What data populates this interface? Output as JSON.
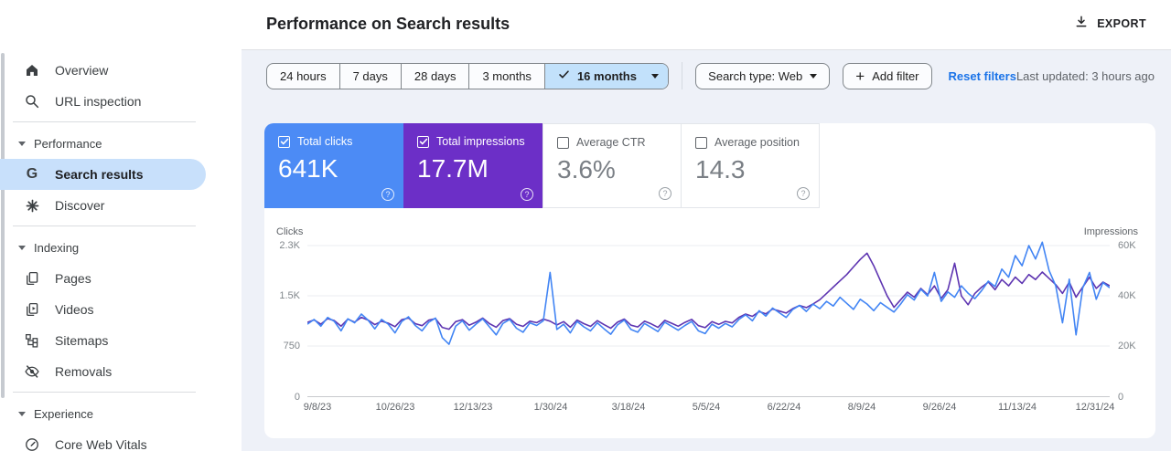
{
  "header": {
    "title": "Performance on Search results",
    "export_label": "EXPORT"
  },
  "filters": {
    "date_ranges": [
      {
        "label": "24 hours",
        "selected": false
      },
      {
        "label": "7 days",
        "selected": false
      },
      {
        "label": "28 days",
        "selected": false
      },
      {
        "label": "3 months",
        "selected": false
      },
      {
        "label": "16 months",
        "selected": true
      }
    ],
    "search_type_label": "Search type: Web",
    "add_filter_label": "Add filter",
    "reset_filters_label": "Reset filters",
    "last_updated": "Last updated: 3 hours ago"
  },
  "sidebar": {
    "items": [
      {
        "label": "Overview",
        "icon": "home-icon"
      },
      {
        "label": "URL inspection",
        "icon": "search-icon"
      }
    ],
    "sections": [
      {
        "label": "Performance",
        "items": [
          {
            "label": "Search results",
            "icon": "google-g-icon",
            "selected": true
          },
          {
            "label": "Discover",
            "icon": "asterisk-icon",
            "selected": false
          }
        ]
      },
      {
        "label": "Indexing",
        "items": [
          {
            "label": "Pages",
            "icon": "pages-icon"
          },
          {
            "label": "Videos",
            "icon": "videos-icon"
          },
          {
            "label": "Sitemaps",
            "icon": "sitemap-icon"
          },
          {
            "label": "Removals",
            "icon": "eye-off-icon"
          }
        ]
      },
      {
        "label": "Experience",
        "items": [
          {
            "label": "Core Web Vitals",
            "icon": "gauge-icon"
          }
        ]
      }
    ]
  },
  "metrics": {
    "tiles": [
      {
        "label": "Total clicks",
        "value": "641K",
        "checked": true,
        "color": "#4c8bf5"
      },
      {
        "label": "Total impressions",
        "value": "17.7M",
        "checked": true,
        "color": "#6c2fc7"
      },
      {
        "label": "Average CTR",
        "value": "3.6%",
        "checked": false
      },
      {
        "label": "Average position",
        "value": "14.3",
        "checked": false
      }
    ]
  },
  "chart_data": {
    "type": "line",
    "legend_position": "none",
    "grid": true,
    "left_axis": {
      "label": "Clicks",
      "tick_labels": [
        "2.3K",
        "1.5K",
        "750",
        "0"
      ],
      "tick_values": [
        2250,
        1500,
        750,
        0
      ],
      "max": 2250
    },
    "right_axis": {
      "label": "Impressions",
      "tick_labels": [
        "60K",
        "40K",
        "20K",
        "0"
      ],
      "tick_values": [
        60000,
        40000,
        20000,
        0
      ],
      "max": 60000
    },
    "x_tick_labels": [
      "9/8/23",
      "10/26/23",
      "12/13/23",
      "1/30/24",
      "3/18/24",
      "5/5/24",
      "6/22/24",
      "8/9/24",
      "9/26/24",
      "11/13/24",
      "12/31/24"
    ],
    "series": [
      {
        "name": "Total impressions",
        "axis": "right",
        "color": "#5e35b1",
        "values": [
          29500,
          30500,
          28800,
          31000,
          30200,
          28000,
          30800,
          29600,
          31500,
          30400,
          28600,
          30000,
          29200,
          27800,
          30600,
          31200,
          29000,
          28200,
          30400,
          31000,
          27500,
          26800,
          29800,
          30600,
          28400,
          29600,
          31200,
          29000,
          27600,
          30200,
          31000,
          28800,
          27900,
          30000,
          29400,
          30800,
          30000,
          28500,
          29800,
          27600,
          30400,
          29000,
          27900,
          30200,
          28600,
          27200,
          29600,
          30800,
          28400,
          27700,
          30000,
          28900,
          27500,
          30300,
          29200,
          28000,
          29500,
          30700,
          28200,
          27400,
          29800,
          28700,
          29900,
          29300,
          31500,
          32800,
          31900,
          33800,
          32900,
          34800,
          34000,
          33200,
          35000,
          36200,
          35400,
          36800,
          38500,
          41000,
          43500,
          46000,
          48500,
          51500,
          54500,
          57000,
          52000,
          46000,
          40000,
          35500,
          38500,
          41500,
          39500,
          43000,
          40500,
          44000,
          39000,
          42500,
          53000,
          40000,
          36500,
          41000,
          43500,
          45500,
          42500,
          46500,
          44000,
          47500,
          45000,
          48500,
          46500,
          49500,
          47000,
          44500,
          41000,
          45500,
          39500,
          43500,
          47500,
          43000,
          45500,
          44000
        ]
      },
      {
        "name": "Total clicks",
        "axis": "left",
        "color": "#4285f4",
        "values": [
          1080,
          1150,
          1050,
          1180,
          1120,
          980,
          1160,
          1100,
          1230,
          1140,
          1010,
          1150,
          1080,
          950,
          1120,
          1190,
          1060,
          980,
          1110,
          1170,
          880,
          780,
          1050,
          1130,
          990,
          1080,
          1160,
          1040,
          920,
          1090,
          1150,
          1020,
          960,
          1100,
          1060,
          1130,
          1850,
          1000,
          1080,
          950,
          1120,
          1040,
          980,
          1100,
          1010,
          930,
          1070,
          1140,
          1000,
          960,
          1090,
          1030,
          970,
          1110,
          1050,
          990,
          1060,
          1120,
          980,
          940,
          1080,
          1020,
          1090,
          1040,
          1150,
          1220,
          1130,
          1280,
          1200,
          1320,
          1250,
          1180,
          1300,
          1360,
          1270,
          1380,
          1310,
          1420,
          1350,
          1480,
          1390,
          1300,
          1450,
          1380,
          1280,
          1400,
          1330,
          1260,
          1380,
          1520,
          1440,
          1600,
          1500,
          1850,
          1420,
          1560,
          1480,
          1650,
          1540,
          1460,
          1580,
          1720,
          1640,
          1900,
          1780,
          2100,
          1950,
          2250,
          2050,
          2300,
          1880,
          1650,
          1100,
          1750,
          920,
          1620,
          1850,
          1450,
          1700,
          1620
        ]
      }
    ]
  }
}
